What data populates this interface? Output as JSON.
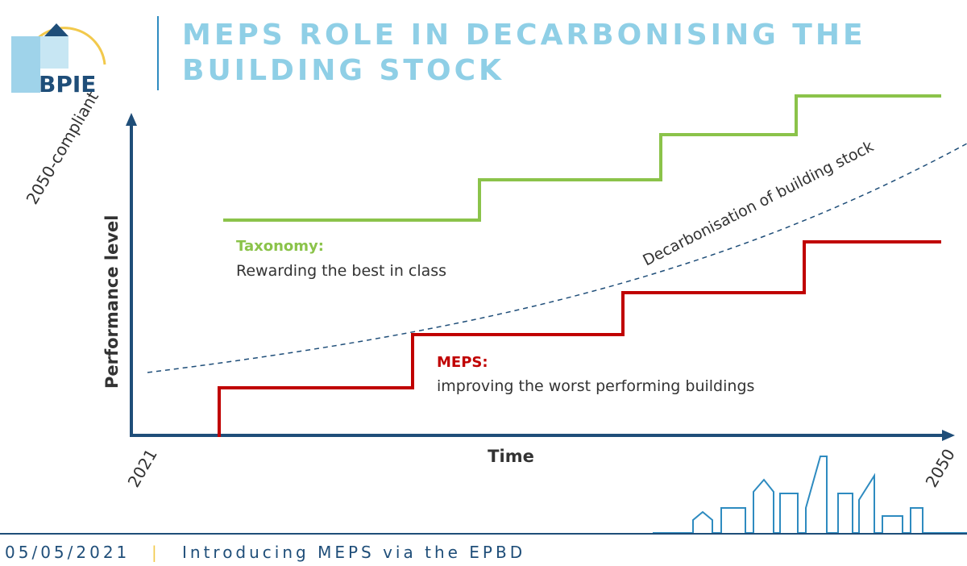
{
  "header": {
    "logo": "BPIE",
    "title": "MEPS ROLE IN DECARBONISING THE BUILDING STOCK"
  },
  "diagram": {
    "y_axis_label": "Performance level",
    "y_top_label": "2050-compliant",
    "x_axis_label": "Time",
    "x_start": "2021",
    "x_end": "2050",
    "curve_label": "Decarbonisation of building stock",
    "taxonomy": {
      "title": "Taxonomy:",
      "text": "Rewarding the best in class"
    },
    "meps": {
      "title": "MEPS:",
      "text": "improving the worst performing buildings"
    }
  },
  "footer": {
    "date": "05/05/2021",
    "separator": "|",
    "subtitle": "Introducing MEPS via the EPBD"
  }
}
